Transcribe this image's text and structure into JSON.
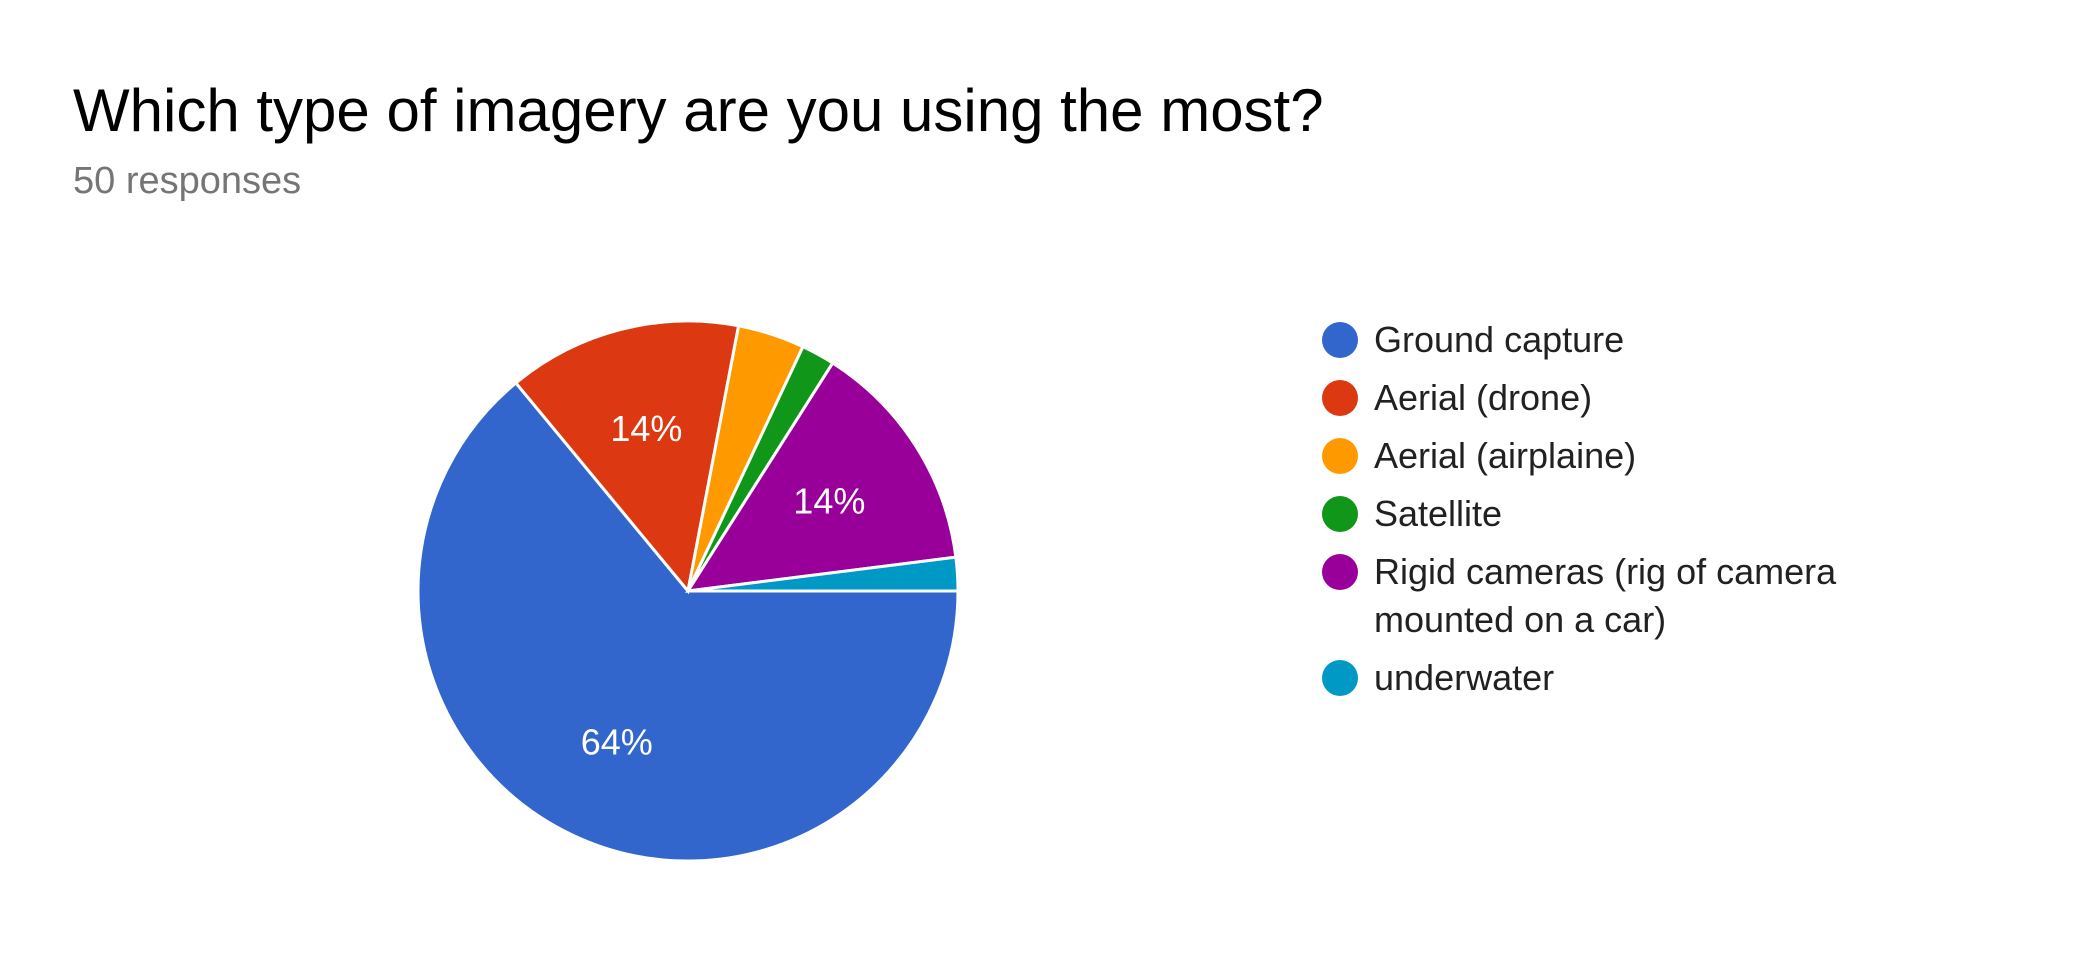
{
  "title": "Which type of imagery are you using the most?",
  "subtitle": "50 responses",
  "colors": {
    "slice_border": "#ffffff",
    "label_text": "#ffffff"
  },
  "chart_data": {
    "type": "pie",
    "title": "Which type of imagery are you using the most?",
    "responses": 50,
    "legend_position": "right",
    "slices": [
      {
        "label": "Ground capture",
        "value": 64,
        "display_label": "64%",
        "color": "#3366cc"
      },
      {
        "label": "Aerial (drone)",
        "value": 14,
        "display_label": "14%",
        "color": "#dc3912"
      },
      {
        "label": "Aerial (airplaine)",
        "value": 4,
        "display_label": "",
        "color": "#ff9900"
      },
      {
        "label": "Satellite",
        "value": 2,
        "display_label": "",
        "color": "#109618"
      },
      {
        "label": "Rigid cameras (rig of camera mounted on a car)",
        "value": 14,
        "display_label": "14%",
        "color": "#990099"
      },
      {
        "label": "underwater",
        "value": 2,
        "display_label": "",
        "color": "#0099c6"
      }
    ]
  }
}
